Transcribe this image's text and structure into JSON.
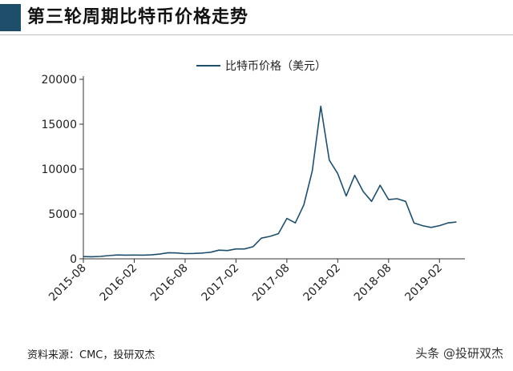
{
  "header": {
    "title": "第三轮周期比特币价格走势"
  },
  "source": "资料来源：CMC，投研双杰",
  "watermark": "头条 @投研双杰",
  "colors": {
    "accent": "#1f4e6b",
    "line": "#1f4e6b"
  },
  "chart_data": {
    "type": "line",
    "title": "",
    "xlabel": "",
    "ylabel": "",
    "legend": {
      "position": "top-center",
      "entries": [
        "比特币价格（美元）"
      ]
    },
    "grid": false,
    "ylim": [
      0,
      20000
    ],
    "yticks": [
      0,
      5000,
      10000,
      15000,
      20000
    ],
    "xlim": [
      "2015-08",
      "2019-05"
    ],
    "xticks": [
      "2015-08",
      "2016-02",
      "2016-08",
      "2017-02",
      "2017-08",
      "2018-02",
      "2018-08",
      "2019-02"
    ],
    "series": [
      {
        "name": "比特币价格（美元）",
        "x": [
          "2015-08",
          "2015-09",
          "2015-10",
          "2015-11",
          "2015-12",
          "2016-01",
          "2016-02",
          "2016-03",
          "2016-04",
          "2016-05",
          "2016-06",
          "2016-07",
          "2016-08",
          "2016-09",
          "2016-10",
          "2016-11",
          "2016-12",
          "2017-01",
          "2017-02",
          "2017-03",
          "2017-04",
          "2017-05",
          "2017-06",
          "2017-07",
          "2017-08",
          "2017-09",
          "2017-10",
          "2017-11",
          "2017-12",
          "2018-01",
          "2018-02",
          "2018-03",
          "2018-04",
          "2018-05",
          "2018-06",
          "2018-07",
          "2018-08",
          "2018-09",
          "2018-10",
          "2018-11",
          "2018-12",
          "2019-01",
          "2019-02",
          "2019-03",
          "2019-04"
        ],
        "y": [
          250,
          235,
          270,
          360,
          430,
          410,
          420,
          410,
          440,
          530,
          680,
          650,
          580,
          600,
          640,
          730,
          960,
          920,
          1100,
          1100,
          1350,
          2300,
          2500,
          2800,
          4500,
          4000,
          6000,
          9800,
          17000,
          11000,
          9500,
          7000,
          9300,
          7500,
          6400,
          8200,
          6600,
          6700,
          6400,
          4000,
          3700,
          3500,
          3700,
          4000,
          4100
        ]
      }
    ]
  }
}
